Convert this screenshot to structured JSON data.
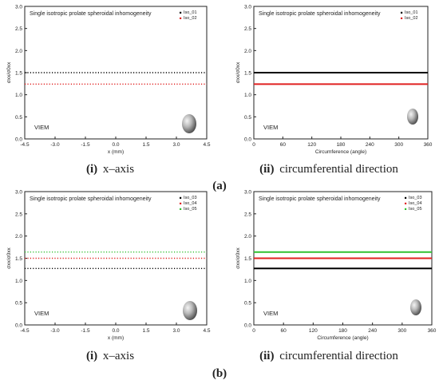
{
  "figure": {
    "row_labels": [
      "(a)",
      "(b)"
    ],
    "panel_captions": [
      {
        "label": "(i)",
        "text": "x–axis"
      },
      {
        "label": "(ii)",
        "text": "circumferential direction"
      },
      {
        "label": "(i)",
        "text": "x–axis"
      },
      {
        "label": "(ii)",
        "text": "circumferential direction"
      }
    ]
  },
  "chart_data": [
    {
      "type": "line",
      "title": "Single isotropic prolate spheroidal inhomogeneity",
      "xlabel": "x (mm)",
      "ylabel": "σxx/σ0xx",
      "annotation": "VIEM",
      "xlim": [
        -4.5,
        4.5
      ],
      "ylim": [
        0.0,
        3.0
      ],
      "xticks": [
        -4.5,
        -3.0,
        -1.5,
        0.0,
        1.5,
        3.0,
        4.5
      ],
      "xtick_labels": [
        "-4.5",
        "-3.0",
        "-1.5",
        "0.0",
        "1.5",
        "3.0",
        "4.5"
      ],
      "yticks": [
        0.0,
        0.5,
        1.0,
        1.5,
        2.0,
        2.5,
        3.0
      ],
      "ytick_labels": [
        "0.0",
        "0.5",
        "1.0",
        "1.5",
        "2.0",
        "2.5",
        "3.0"
      ],
      "legend_position": "top-right",
      "line_style": "dotted",
      "series": [
        {
          "name": "Iso_01",
          "color": "#000000",
          "x": [
            -4.5,
            4.5
          ],
          "y": [
            1.5,
            1.5
          ]
        },
        {
          "name": "Iso_02",
          "color": "#e02020",
          "x": [
            -4.5,
            4.5
          ],
          "y": [
            1.24,
            1.24
          ]
        }
      ]
    },
    {
      "type": "line",
      "title": "Single isotropic prolate spheroidal inhomogeneity",
      "xlabel": "Circumference (angle)",
      "ylabel": "σxx/σ0xx",
      "annotation": "VIEM",
      "xlim": [
        0,
        360
      ],
      "ylim": [
        0.0,
        3.0
      ],
      "xticks": [
        0,
        60,
        120,
        180,
        240,
        300,
        360
      ],
      "xtick_labels": [
        "0",
        "60",
        "120",
        "180",
        "240",
        "300",
        "360"
      ],
      "yticks": [
        0.0,
        0.5,
        1.0,
        1.5,
        2.0,
        2.5,
        3.0
      ],
      "ytick_labels": [
        "0.0",
        "0.5",
        "1.0",
        "1.5",
        "2.0",
        "2.5",
        "3.0"
      ],
      "legend_position": "top-right",
      "line_style": "solid",
      "series": [
        {
          "name": "Iso_01",
          "color": "#000000",
          "x": [
            0,
            360
          ],
          "y": [
            1.5,
            1.5
          ]
        },
        {
          "name": "Iso_02",
          "color": "#e02020",
          "x": [
            0,
            360
          ],
          "y": [
            1.24,
            1.24
          ]
        }
      ]
    },
    {
      "type": "line",
      "title": "Single isotropic prolate spheroidal inhomogeneity",
      "xlabel": "x (mm)",
      "ylabel": "σxx/σ0xx",
      "annotation": "VIEM",
      "xlim": [
        -4.5,
        4.5
      ],
      "ylim": [
        0.0,
        3.0
      ],
      "xticks": [
        -4.5,
        -3.0,
        -1.5,
        0.0,
        1.5,
        3.0,
        4.5
      ],
      "xtick_labels": [
        "-4.5",
        "-3.0",
        "-1.5",
        "0.0",
        "1.5",
        "3.0",
        "4.5"
      ],
      "yticks": [
        0.0,
        0.5,
        1.0,
        1.5,
        2.0,
        2.5,
        3.0
      ],
      "ytick_labels": [
        "0.0",
        "0.5",
        "1.0",
        "1.5",
        "2.0",
        "2.5",
        "3.0"
      ],
      "legend_position": "top-right",
      "line_style": "dotted",
      "series": [
        {
          "name": "Iso_03",
          "color": "#000000",
          "x": [
            -4.5,
            4.5
          ],
          "y": [
            1.27,
            1.27
          ]
        },
        {
          "name": "Iso_04",
          "color": "#e02020",
          "x": [
            -4.5,
            4.5
          ],
          "y": [
            1.5,
            1.5
          ]
        },
        {
          "name": "Iso_05",
          "color": "#30c030",
          "x": [
            -4.5,
            4.5
          ],
          "y": [
            1.64,
            1.64
          ]
        }
      ]
    },
    {
      "type": "line",
      "title": "Single isotropic prolate spheroidal inhomogeneity",
      "xlabel": "Circumference (angle)",
      "ylabel": "σxx/σ0xx",
      "annotation": "VIEM",
      "xlim": [
        0,
        360
      ],
      "ylim": [
        0.0,
        3.0
      ],
      "xticks": [
        0,
        60,
        120,
        180,
        240,
        300,
        360
      ],
      "xtick_labels": [
        "0",
        "60",
        "120",
        "180",
        "240",
        "300",
        "360"
      ],
      "yticks": [
        0.0,
        0.5,
        1.0,
        1.5,
        2.0,
        2.5,
        3.0
      ],
      "ytick_labels": [
        "0.0",
        "0.5",
        "1.0",
        "1.5",
        "2.0",
        "2.5",
        "3.0"
      ],
      "legend_position": "top-right",
      "line_style": "solid",
      "series": [
        {
          "name": "Iso_03",
          "color": "#000000",
          "x": [
            0,
            360
          ],
          "y": [
            1.27,
            1.27
          ]
        },
        {
          "name": "Iso_04",
          "color": "#e02020",
          "x": [
            0,
            360
          ],
          "y": [
            1.5,
            1.5
          ]
        },
        {
          "name": "Iso_05",
          "color": "#30c030",
          "x": [
            0,
            360
          ],
          "y": [
            1.64,
            1.64
          ]
        }
      ]
    }
  ]
}
